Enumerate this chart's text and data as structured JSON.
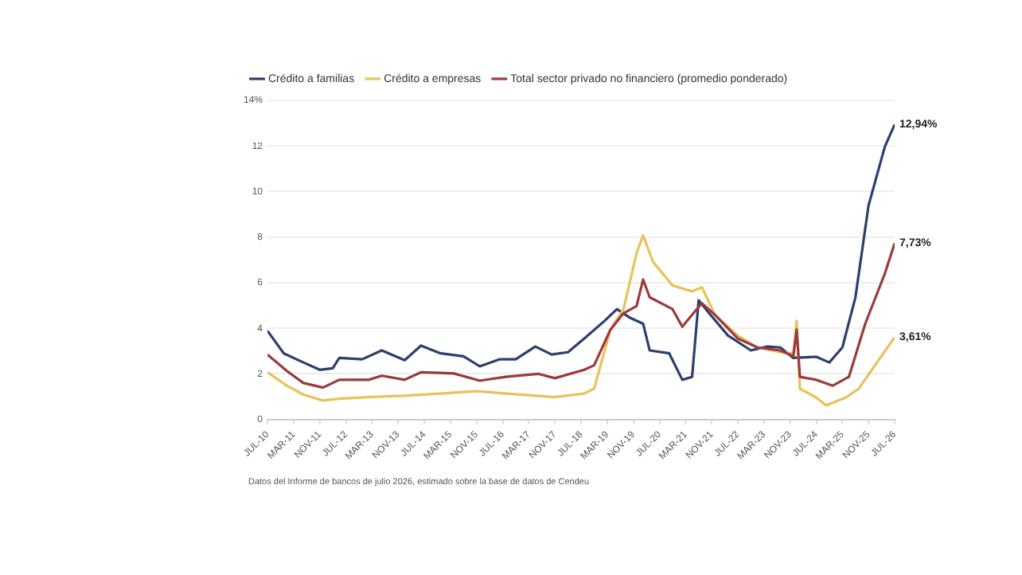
{
  "chart_data": {
    "type": "line",
    "legend": "top left",
    "grid": "y",
    "marker": "none",
    "line_style": "solid",
    "annotations": [
      "Datos del Informe de bancos de julio 2026, estimado sobre la base de datos de Cendeu"
    ],
    "xlim": [
      "2010-07",
      "2026-07"
    ],
    "xticks": [
      {
        "value": "2010-07",
        "label": "JUL-10"
      },
      {
        "value": "2011-03",
        "label": "MAR-11"
      },
      {
        "value": "2011-11",
        "label": "NOV-11"
      },
      {
        "value": "2012-07",
        "label": "JUL-12"
      },
      {
        "value": "2013-03",
        "label": "MAR-13"
      },
      {
        "value": "2013-11",
        "label": "NOV-13"
      },
      {
        "value": "2014-07",
        "label": "JUL-14"
      },
      {
        "value": "2015-03",
        "label": "MAR-15"
      },
      {
        "value": "2015-11",
        "label": "NOV-15"
      },
      {
        "value": "2016-07",
        "label": "JUL-16"
      },
      {
        "value": "2017-03",
        "label": "MAR-17"
      },
      {
        "value": "2017-11",
        "label": "NOV-17"
      },
      {
        "value": "2018-07",
        "label": "JUL-18"
      },
      {
        "value": "2019-03",
        "label": "MAR-19"
      },
      {
        "value": "2019-11",
        "label": "NOV-19"
      },
      {
        "value": "2020-07",
        "label": "JUL-20"
      },
      {
        "value": "2021-03",
        "label": "MAR-21"
      },
      {
        "value": "2021-11",
        "label": "NOV-21"
      },
      {
        "value": "2022-07",
        "label": "JUL-22"
      },
      {
        "value": "2023-03",
        "label": "MAR-23"
      },
      {
        "value": "2023-11",
        "label": "NOV-23"
      },
      {
        "value": "2024-07",
        "label": "JUL-24"
      },
      {
        "value": "2025-03",
        "label": "MAR-25"
      },
      {
        "value": "2025-11",
        "label": "NOV-25"
      },
      {
        "value": "2026-07",
        "label": "JUL-26"
      }
    ],
    "ylim": [
      0,
      14
    ],
    "yticks": [
      0,
      2,
      4,
      6,
      8,
      10,
      12,
      {
        "value": 14,
        "label": "14%"
      }
    ],
    "series": [
      {
        "name": "Crédito a familias",
        "color": "#2e3f6e",
        "x": [
          "2010-07",
          "2010-12",
          "2011-06",
          "2011-11",
          "2012-03",
          "2012-05",
          "2012-12",
          "2013-06",
          "2014-01",
          "2014-06",
          "2014-12",
          "2015-07",
          "2015-12",
          "2016-06",
          "2016-11",
          "2017-05",
          "2017-10",
          "2018-03",
          "2018-08",
          "2019-02",
          "2019-06",
          "2019-10",
          "2020-02",
          "2020-04",
          "2020-10",
          "2021-02",
          "2021-05",
          "2021-07",
          "2021-10",
          "2022-04",
          "2022-11",
          "2023-04",
          "2023-08",
          "2023-12",
          "2024-07",
          "2024-11",
          "2025-03",
          "2025-07",
          "2025-11",
          "2026-04",
          "2026-07"
        ],
        "values": [
          3.89,
          2.9,
          2.5,
          2.18,
          2.25,
          2.7,
          2.64,
          3.03,
          2.6,
          3.24,
          2.9,
          2.77,
          2.33,
          2.64,
          2.64,
          3.2,
          2.85,
          2.95,
          3.55,
          4.3,
          4.84,
          4.46,
          4.2,
          3.03,
          2.9,
          1.74,
          1.87,
          5.23,
          4.7,
          3.68,
          3.03,
          3.2,
          3.16,
          2.7,
          2.75,
          2.5,
          3.16,
          5.36,
          9.38,
          11.97,
          12.94
        ],
        "value_labels": [
          null,
          null,
          null,
          null,
          null,
          null,
          null,
          null,
          null,
          null,
          null,
          null,
          null,
          null,
          null,
          null,
          null,
          null,
          null,
          null,
          null,
          null,
          null,
          null,
          null,
          null,
          null,
          null,
          null,
          null,
          null,
          null,
          null,
          null,
          null,
          null,
          null,
          null,
          null,
          null,
          "12,94%"
        ]
      },
      {
        "name": "Crédito a empresas",
        "color": "#e8c25a",
        "x": [
          "2010-07",
          "2011-01",
          "2011-06",
          "2011-12",
          "2012-05",
          "2013-02",
          "2014-01",
          "2014-12",
          "2015-11",
          "2016-08",
          "2017-05",
          "2017-11",
          "2018-08",
          "2018-11",
          "2019-04",
          "2019-08",
          "2019-12",
          "2020-02",
          "2020-05",
          "2020-11",
          "2021-05",
          "2021-08",
          "2021-12",
          "2022-07",
          "2023-01",
          "2023-08",
          "2023-12",
          "2024-01",
          "2024-02",
          "2024-07",
          "2024-10",
          "2025-04",
          "2025-08",
          "2026-01",
          "2026-07"
        ],
        "values": [
          2.07,
          1.48,
          1.09,
          0.83,
          0.91,
          0.98,
          1.04,
          1.14,
          1.24,
          1.14,
          1.04,
          0.98,
          1.14,
          1.35,
          3.94,
          4.84,
          7.3,
          8.08,
          6.92,
          5.88,
          5.62,
          5.8,
          4.59,
          3.68,
          3.16,
          2.95,
          2.9,
          4.33,
          1.35,
          0.96,
          0.62,
          0.96,
          1.35,
          2.38,
          3.61
        ],
        "value_labels": [
          null,
          null,
          null,
          null,
          null,
          null,
          null,
          null,
          null,
          null,
          null,
          null,
          null,
          null,
          null,
          null,
          null,
          null,
          null,
          null,
          null,
          null,
          null,
          null,
          null,
          null,
          null,
          null,
          null,
          null,
          null,
          null,
          null,
          null,
          "3,61%"
        ]
      },
      {
        "name": "Total sector privado no financiero (promedio ponderado)",
        "color": "#9b3a3e",
        "x": [
          "2010-07",
          "2011-01",
          "2011-06",
          "2011-12",
          "2012-05",
          "2013-02",
          "2013-06",
          "2014-01",
          "2014-06",
          "2015-04",
          "2015-12",
          "2016-08",
          "2017-06",
          "2017-11",
          "2018-08",
          "2018-11",
          "2019-04",
          "2019-08",
          "2019-12",
          "2020-02",
          "2020-04",
          "2020-11",
          "2021-02",
          "2021-05",
          "2021-08",
          "2021-12",
          "2022-07",
          "2023-01",
          "2023-08",
          "2023-12",
          "2024-01",
          "2024-02",
          "2024-07",
          "2024-12",
          "2025-05",
          "2025-10",
          "2026-04",
          "2026-07"
        ],
        "values": [
          2.85,
          2.12,
          1.6,
          1.4,
          1.74,
          1.74,
          1.92,
          1.74,
          2.07,
          2.02,
          1.7,
          1.87,
          2.0,
          1.81,
          2.18,
          2.38,
          3.94,
          4.66,
          4.97,
          6.14,
          5.36,
          4.84,
          4.07,
          4.59,
          5.1,
          4.59,
          3.55,
          3.16,
          3.03,
          2.77,
          3.94,
          1.87,
          1.74,
          1.48,
          1.87,
          4.2,
          6.4,
          7.73
        ],
        "value_labels": [
          null,
          null,
          null,
          null,
          null,
          null,
          null,
          null,
          null,
          null,
          null,
          null,
          null,
          null,
          null,
          null,
          null,
          null,
          null,
          null,
          null,
          null,
          null,
          null,
          null,
          null,
          null,
          null,
          null,
          null,
          null,
          null,
          null,
          null,
          null,
          null,
          null,
          "7,73%"
        ]
      }
    ]
  }
}
